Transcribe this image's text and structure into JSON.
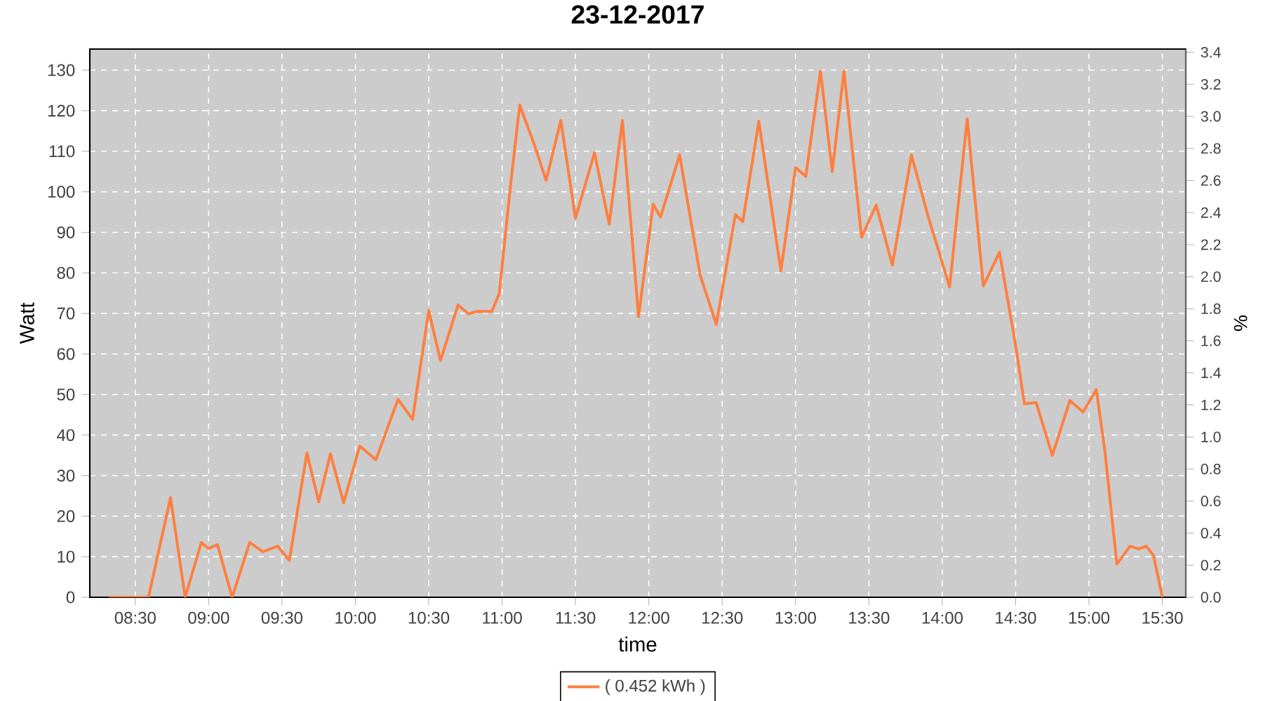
{
  "chart_data": {
    "type": "line",
    "title": "23-12-2017",
    "xlabel": "time",
    "ylabel": "Watt",
    "y2label": "%",
    "xlim": [
      8.19,
      15.66
    ],
    "xticks": [
      {
        "value": 8.5,
        "label": "08:30"
      },
      {
        "value": 9,
        "label": "09:00"
      },
      {
        "value": 9.5,
        "label": "09:30"
      },
      {
        "value": 10,
        "label": "10:00"
      },
      {
        "value": 10.5,
        "label": "10:30"
      },
      {
        "value": 11,
        "label": "11:00"
      },
      {
        "value": 11.5,
        "label": "11:30"
      },
      {
        "value": 12,
        "label": "12:00"
      },
      {
        "value": 12.5,
        "label": "12:30"
      },
      {
        "value": 13,
        "label": "13:00"
      },
      {
        "value": 13.5,
        "label": "13:30"
      },
      {
        "value": 14,
        "label": "14:00"
      },
      {
        "value": 14.5,
        "label": "14:30"
      },
      {
        "value": 15,
        "label": "15:00"
      },
      {
        "value": 15.5,
        "label": "15:30"
      }
    ],
    "ylim": [
      0,
      135.2
    ],
    "yticks": [
      0,
      10,
      20,
      30,
      40,
      50,
      60,
      70,
      80,
      90,
      100,
      110,
      120,
      130
    ],
    "y2lim": [
      0,
      3.42
    ],
    "y2ticks": [
      {
        "value": 0,
        "label": "0.0"
      },
      0.2,
      0.4,
      0.6,
      0.8,
      {
        "value": 1,
        "label": "1.0"
      },
      1.2,
      1.4,
      1.6,
      1.8,
      {
        "value": 2,
        "label": "2.0"
      },
      2.2,
      2.4,
      2.6,
      2.8,
      {
        "value": 3,
        "label": "3.0"
      },
      3.2,
      3.4
    ],
    "grid": true,
    "legend": "bottom",
    "marker": "none",
    "line_style": "solid",
    "series": [
      {
        "name": "( 0.452 kWh )",
        "color": "#ff7f3f",
        "x": [
          8.32,
          8.47,
          8.59,
          8.74,
          8.84,
          8.95,
          9.0,
          9.06,
          9.16,
          9.28,
          9.37,
          9.47,
          9.55,
          9.67,
          9.75,
          9.83,
          9.92,
          10.03,
          10.14,
          10.29,
          10.39,
          10.5,
          10.58,
          10.7,
          10.77,
          10.83,
          10.93,
          10.98,
          11.06,
          11.12,
          11.22,
          11.3,
          11.4,
          11.5,
          11.63,
          11.73,
          11.82,
          11.93,
          12.03,
          12.08,
          12.21,
          12.35,
          12.46,
          12.59,
          12.64,
          12.75,
          12.9,
          13.0,
          13.07,
          13.17,
          13.25,
          13.33,
          13.45,
          13.55,
          13.66,
          13.79,
          13.9,
          14.05,
          14.17,
          14.28,
          14.39,
          14.5,
          14.56,
          14.64,
          14.75,
          14.87,
          14.96,
          15.05,
          15.11,
          15.19,
          15.28,
          15.34,
          15.39,
          15.44,
          15.5
        ],
        "values": [
          0,
          0,
          0,
          24.6,
          0,
          13.5,
          12,
          13,
          0,
          13.5,
          11.2,
          12.6,
          9.1,
          35.6,
          23.5,
          35.4,
          23.3,
          37.3,
          33.9,
          48.8,
          43.9,
          70.7,
          58.4,
          72.1,
          69.9,
          70.5,
          70.5,
          74.8,
          102.4,
          121.4,
          111.6,
          102.8,
          117.6,
          93.5,
          109.6,
          92,
          117.6,
          69.2,
          96.9,
          93.8,
          109.1,
          79.4,
          67.3,
          94.4,
          92.6,
          117.4,
          80.5,
          106,
          103.8,
          129.8,
          105,
          129.8,
          88.8,
          96.7,
          81.9,
          109.1,
          94.4,
          76.5,
          118,
          76.8,
          85.1,
          62.1,
          47.7,
          48,
          35,
          48.5,
          45.7,
          51.2,
          35.6,
          8.2,
          12.6,
          11.9,
          12.6,
          10.3,
          0
        ]
      }
    ]
  }
}
